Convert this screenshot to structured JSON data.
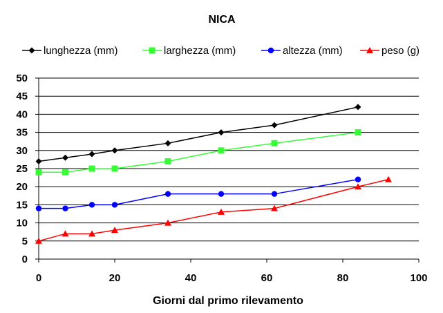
{
  "chart_data": {
    "type": "line",
    "title": "NICA",
    "xlabel": "Giorni dal primo rilevamento",
    "ylabel": "",
    "xlim": [
      0,
      100
    ],
    "ylim": [
      0,
      50
    ],
    "x_ticks": [
      0,
      20,
      40,
      60,
      80,
      100
    ],
    "y_ticks": [
      0,
      5,
      10,
      15,
      20,
      25,
      30,
      35,
      40,
      45,
      50
    ],
    "grid": "horizontal",
    "legend_position": "top",
    "series": [
      {
        "name": "lunghezza (mm)",
        "color": "#000000",
        "marker": "diamond",
        "points": [
          [
            0,
            27
          ],
          [
            7,
            28
          ],
          [
            14,
            29
          ],
          [
            20,
            30
          ],
          [
            34,
            32
          ],
          [
            48,
            35
          ],
          [
            62,
            37
          ],
          [
            84,
            42
          ]
        ]
      },
      {
        "name": "larghezza (mm)",
        "color": "#33ff33",
        "marker": "square",
        "points": [
          [
            0,
            24
          ],
          [
            7,
            24
          ],
          [
            14,
            25
          ],
          [
            20,
            25
          ],
          [
            34,
            27
          ],
          [
            48,
            30
          ],
          [
            62,
            32
          ],
          [
            84,
            35
          ]
        ]
      },
      {
        "name": "altezza (mm)",
        "color": "#0000ff",
        "marker": "circle",
        "points": [
          [
            0,
            14
          ],
          [
            7,
            14
          ],
          [
            14,
            15
          ],
          [
            20,
            15
          ],
          [
            34,
            18
          ],
          [
            48,
            18
          ],
          [
            62,
            18
          ],
          [
            84,
            22
          ]
        ]
      },
      {
        "name": "peso (g)",
        "color": "#ff0000",
        "marker": "triangle",
        "points": [
          [
            0,
            5
          ],
          [
            7,
            7
          ],
          [
            14,
            7
          ],
          [
            20,
            8
          ],
          [
            34,
            10
          ],
          [
            48,
            13
          ],
          [
            62,
            14
          ],
          [
            84,
            20
          ],
          [
            92,
            22
          ]
        ]
      }
    ]
  }
}
